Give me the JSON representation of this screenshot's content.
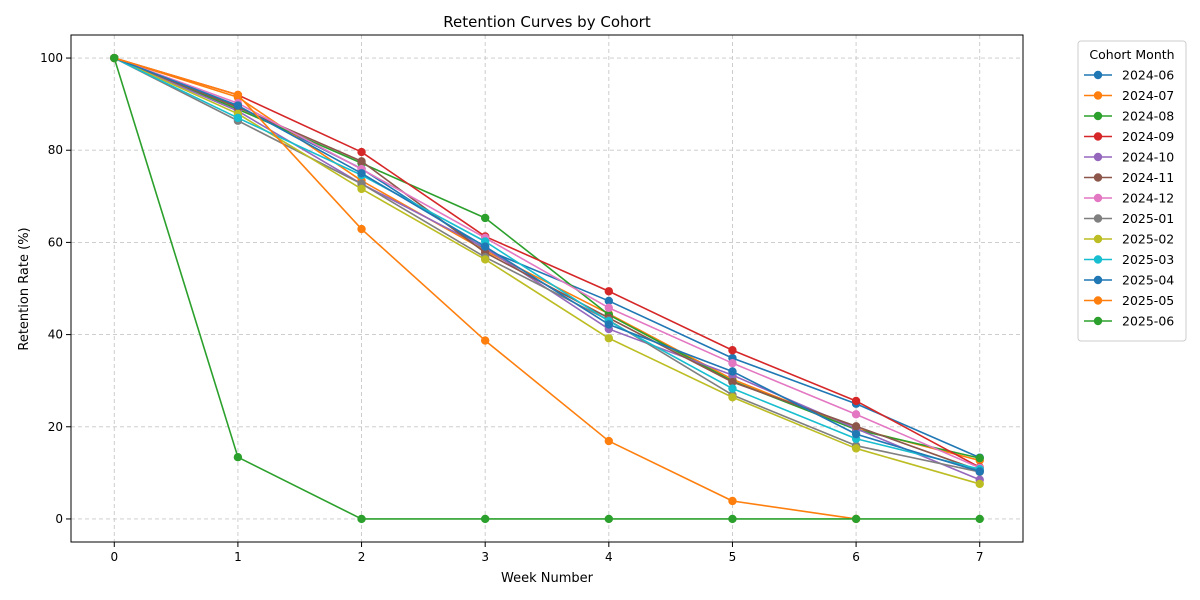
{
  "chart_data": {
    "type": "line",
    "title": "Retention Curves by Cohort",
    "xlabel": "Week Number",
    "ylabel": "Retention Rate (%)",
    "x": [
      0,
      1,
      2,
      3,
      4,
      5,
      6,
      7
    ],
    "xlim": [
      -0.35,
      7.35
    ],
    "ylim": [
      -5,
      105
    ],
    "xticks": [
      0,
      1,
      2,
      3,
      4,
      5,
      6,
      7
    ],
    "yticks": [
      0,
      20,
      40,
      60,
      80,
      100
    ],
    "grid": true,
    "legend_title": "Cohort Month",
    "legend_position": "outside-right",
    "series": [
      {
        "name": "2024-06",
        "color": "#1f77b4",
        "values": [
          100,
          89.5,
          76,
          58.5,
          47.3,
          34.9,
          25,
          13.3
        ]
      },
      {
        "name": "2024-07",
        "color": "#ff7f0e",
        "values": [
          100,
          91.5,
          73.4,
          58.2,
          44.5,
          30.3,
          19.6,
          12.7
        ]
      },
      {
        "name": "2024-08",
        "color": "#2ca02c",
        "values": [
          100,
          88.9,
          77.2,
          65.3,
          44.3,
          29.9,
          19.4,
          13.2
        ]
      },
      {
        "name": "2024-09",
        "color": "#d62728",
        "values": [
          100,
          92,
          79.6,
          61.3,
          49.4,
          36.6,
          25.6,
          11.2
        ]
      },
      {
        "name": "2024-10",
        "color": "#9467bd",
        "values": [
          100,
          88.5,
          72.7,
          58.8,
          41.2,
          31.2,
          19.6,
          8.5
        ]
      },
      {
        "name": "2024-11",
        "color": "#8c564b",
        "values": [
          100,
          89.3,
          77.6,
          57.8,
          43.6,
          29.7,
          20.1,
          10.5
        ]
      },
      {
        "name": "2024-12",
        "color": "#e377c2",
        "values": [
          100,
          90.2,
          75.9,
          61,
          45.8,
          33.8,
          22.7,
          11.1
        ]
      },
      {
        "name": "2025-01",
        "color": "#7f7f7f",
        "values": [
          100,
          86.4,
          72.7,
          56.8,
          43.1,
          26.9,
          15.9,
          10.2
        ]
      },
      {
        "name": "2025-02",
        "color": "#bcbd22",
        "values": [
          100,
          87.9,
          71.6,
          56.3,
          39.2,
          26.4,
          15.3,
          7.6
        ]
      },
      {
        "name": "2025-03",
        "color": "#17becf",
        "values": [
          100,
          87,
          74.6,
          60.2,
          42.9,
          28.3,
          17.4,
          10.8
        ]
      },
      {
        "name": "2025-04",
        "color": "#1f77b4",
        "values": [
          100,
          89.7,
          75,
          59.1,
          42.2,
          32,
          18.4,
          10.3
        ]
      },
      {
        "name": "2025-05",
        "color": "#ff7f0e",
        "values": [
          100,
          92,
          62.9,
          38.7,
          16.9,
          3.9,
          0,
          null
        ]
      },
      {
        "name": "2025-06",
        "color": "#2ca02c",
        "values": [
          100,
          13.4,
          0,
          0,
          0,
          0,
          0,
          0
        ]
      }
    ]
  }
}
